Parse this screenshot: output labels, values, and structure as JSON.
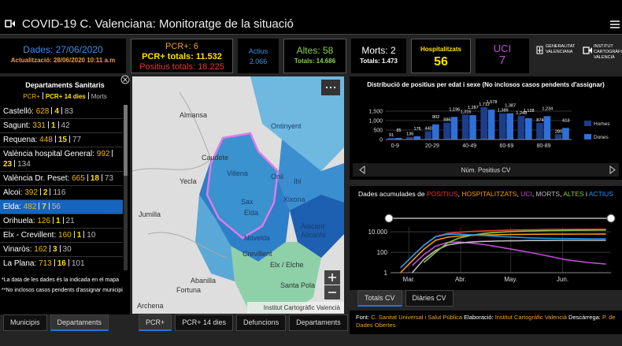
{
  "header": {
    "title": "COVID-19 C. Valenciana: Monitoratge de la situació"
  },
  "stats": {
    "date": "Dades: 27/06/2020",
    "updated": "Actualització: 28/06/2020 10:11 a.m",
    "pcr": "PCR+: 6",
    "pcr_total": "PCR+ totals: 11.532",
    "positive_total": "Positius totals: 18.225",
    "active_label": "Actius",
    "active": "2.066",
    "discharges": "Altes: 58",
    "discharges_total": "Totals: 14.686",
    "deaths": "Morts: 2",
    "deaths_total": "Totals: 1.473",
    "hospital_label": "Hospitalitzats",
    "hospital": "56",
    "icu_label": "UCI",
    "icu": "7"
  },
  "logos": [
    "GENERALITAT VALENCIANA",
    "INSTITUT CARTOGRÀFIC VALENCIÀ"
  ],
  "departments": {
    "title": "Departaments Sanitaris",
    "legend": [
      "PCR+",
      "PCR+ 14 dies",
      "Morts"
    ],
    "selected_row": 6,
    "rows": [
      {
        "name": "Castelló:",
        "pcr": "628",
        "pcr14": "4",
        "deaths": "83"
      },
      {
        "name": "Sagunt:",
        "pcr": "331",
        "pcr14": "1",
        "deaths": "42"
      },
      {
        "name": "Requena:",
        "pcr": "448",
        "pcr14": "15",
        "deaths": "77"
      },
      {
        "name": "València hospital General:",
        "pcr": "992",
        "pcr14": "23",
        "deaths": "134"
      },
      {
        "name": "València Dr. Peset:",
        "pcr": "665",
        "pcr14": "18",
        "deaths": "73"
      },
      {
        "name": "Alcoi:",
        "pcr": "392",
        "pcr14": "2",
        "deaths": "116"
      },
      {
        "name": "Elda:",
        "pcr": "482",
        "pcr14": "7",
        "deaths": "56"
      },
      {
        "name": "Orihuela:",
        "pcr": "126",
        "pcr14": "1",
        "deaths": "21"
      },
      {
        "name": "Elx - Crevillent:",
        "pcr": "160",
        "pcr14": "1",
        "deaths": "10"
      },
      {
        "name": "Vinaròs:",
        "pcr": "162",
        "pcr14": "3",
        "deaths": "30"
      },
      {
        "name": "La Plana:",
        "pcr": "713",
        "pcr14": "16",
        "deaths": "101"
      }
    ],
    "notes": [
      "*La data de les dades és la indicada en el mapa",
      "**No inclosos casos pendents d'assignar municipi"
    ]
  },
  "left_tabs": {
    "items": [
      "Municipis",
      "Departaments"
    ],
    "active": 1
  },
  "map": {
    "labels": [
      "Almansa",
      "Ontinyent",
      "Caudete",
      "Yecla",
      "Villena",
      "Onil",
      "Ibi",
      "Xixona",
      "Sax",
      "Elda",
      "Novelda",
      "Alacant",
      "Alicante",
      "Crevillent",
      "Elx / Elche",
      "Santa Pola",
      "Abanilla",
      "Fortuna",
      "Jumilla",
      "Archena"
    ],
    "attribution": "Institut Cartogràfic Valencià"
  },
  "map_tabs": {
    "items": [
      "PCR+",
      "PCR+ 14 dies",
      "Defuncions",
      "Departaments"
    ],
    "active": 0
  },
  "chart_data": [
    {
      "type": "bar",
      "title": "Distribució de positius per edat i sexe (No inclosos casos pendents d'assignar)",
      "categories": [
        "0-9",
        null,
        "20-29",
        null,
        "40-49",
        null,
        "60-69",
        null,
        "80-89",
        null
      ],
      "series": [
        {
          "name": "Homes",
          "color": "#1b3d8c",
          "values": [
            91,
            136,
            440,
            886,
            1316,
            1712,
            1389,
            1248,
            874,
            280
          ],
          "value_labels": [
            "91",
            "136",
            "440",
            "886",
            "1,316",
            "1,712",
            "1,389",
            "1,248",
            "874",
            "280"
          ]
        },
        {
          "name": "Dones",
          "color": "#2f6fd8",
          "values": [
            85,
            176,
            802,
            1196,
            1287,
            1578,
            1387,
            1128,
            1234,
            613
          ],
          "value_labels": [
            "85",
            "176",
            "802",
            "1,196",
            "1,287",
            "1,578",
            "1,387",
            "1,128",
            "1,234",
            "613"
          ]
        }
      ],
      "ylim": [
        0,
        2000
      ],
      "yticks": [
        0,
        500,
        {
          "value": 1000,
          "label": "1,000"
        },
        {
          "value": 1500,
          "label": "1,500"
        }
      ],
      "xlabel": "Núm. Positius CV",
      "grid": true
    },
    {
      "type": "line",
      "title_parts": [
        {
          "text": "Dades acumulades de ",
          "color": "#ffffff"
        },
        {
          "text": "POSITIUS",
          "color": "#e53935"
        },
        {
          "text": ", ",
          "color": "#ffffff"
        },
        {
          "text": "HOSPITALITZATS",
          "color": "#ff9800"
        },
        {
          "text": ", ",
          "color": "#ffffff"
        },
        {
          "text": "UCI",
          "color": "#c04dd6"
        },
        {
          "text": ", ",
          "color": "#ffffff"
        },
        {
          "text": "MORTS",
          "color": "#bdbdbd"
        },
        {
          "text": ", ",
          "color": "#ffffff"
        },
        {
          "text": "ALTES",
          "color": "#8bc34a"
        },
        {
          "text": " i ",
          "color": "#ffffff"
        },
        {
          "text": "ACTIUS",
          "color": "#2196f3"
        }
      ],
      "x": [
        56,
        63,
        70,
        77,
        84,
        91,
        98,
        105,
        112,
        119,
        126,
        133,
        140,
        147,
        154,
        161,
        168,
        175,
        179
      ],
      "series": [
        {
          "color": "#e53935",
          "values": [
            3,
            40,
            500,
            3500,
            7000,
            9200,
            10800,
            12200,
            13500,
            14600,
            15500,
            16200,
            16800,
            17300,
            17600,
            17850,
            18000,
            18150,
            18225
          ]
        },
        {
          "color": "#ff9800",
          "values": [
            1,
            15,
            200,
            1500,
            3000,
            3900,
            4500,
            4900,
            5200,
            5400,
            5600,
            5750,
            5850,
            5950,
            6000,
            6050,
            6100,
            6130,
            6150
          ]
        },
        {
          "color": "#c04dd6",
          "values": [
            null,
            5,
            60,
            400,
            900,
            1000,
            800,
            600,
            400,
            250,
            160,
            100,
            60,
            35,
            20,
            14,
            10,
            8,
            7
          ]
        },
        {
          "color": "#bdbdbd",
          "values": [
            null,
            1,
            20,
            150,
            500,
            800,
            1000,
            1150,
            1250,
            1320,
            1370,
            1400,
            1420,
            1440,
            1450,
            1460,
            1465,
            1470,
            1473
          ]
        },
        {
          "color": "#8bc34a",
          "values": [
            null,
            null,
            10,
            100,
            800,
            2500,
            4500,
            6500,
            8500,
            10000,
            11200,
            12200,
            13000,
            13600,
            14000,
            14300,
            14500,
            14620,
            14686
          ]
        },
        {
          "color": "#2196f3",
          "values": [
            3,
            40,
            480,
            3300,
            5700,
            5900,
            5300,
            4500,
            3800,
            3300,
            2900,
            2600,
            2400,
            2300,
            2200,
            2150,
            2100,
            2080,
            2066
          ]
        }
      ],
      "log_y": true,
      "ylim": [
        1,
        30000
      ],
      "yticks": [
        1,
        100,
        {
          "value": 10000,
          "label": "10.000"
        }
      ],
      "xlim": [
        50,
        182
      ],
      "xticks": [
        {
          "value": 61,
          "label": "Mar."
        },
        {
          "value": 92,
          "label": "Abr."
        },
        {
          "value": 122,
          "label": "May."
        },
        {
          "value": 153,
          "label": "Jun."
        }
      ],
      "grid": true
    }
  ],
  "line_tabs": {
    "items": [
      "Totals CV",
      "Diàries CV"
    ],
    "active": 0
  },
  "footer": {
    "parts": [
      {
        "text": "Font: ",
        "color": "#ffffff"
      },
      {
        "text": "C. Sanitat Universal i Salut Pública",
        "color": "#f0a030"
      },
      {
        "text": " Elaboració: ",
        "color": "#ffffff"
      },
      {
        "text": "Institut Cartogràfic Valencià",
        "color": "#f0a030"
      },
      {
        "text": " Descàrrega: ",
        "color": "#ffffff"
      },
      {
        "text": "P. de Dades Obertes",
        "color": "#f0a030"
      }
    ]
  }
}
